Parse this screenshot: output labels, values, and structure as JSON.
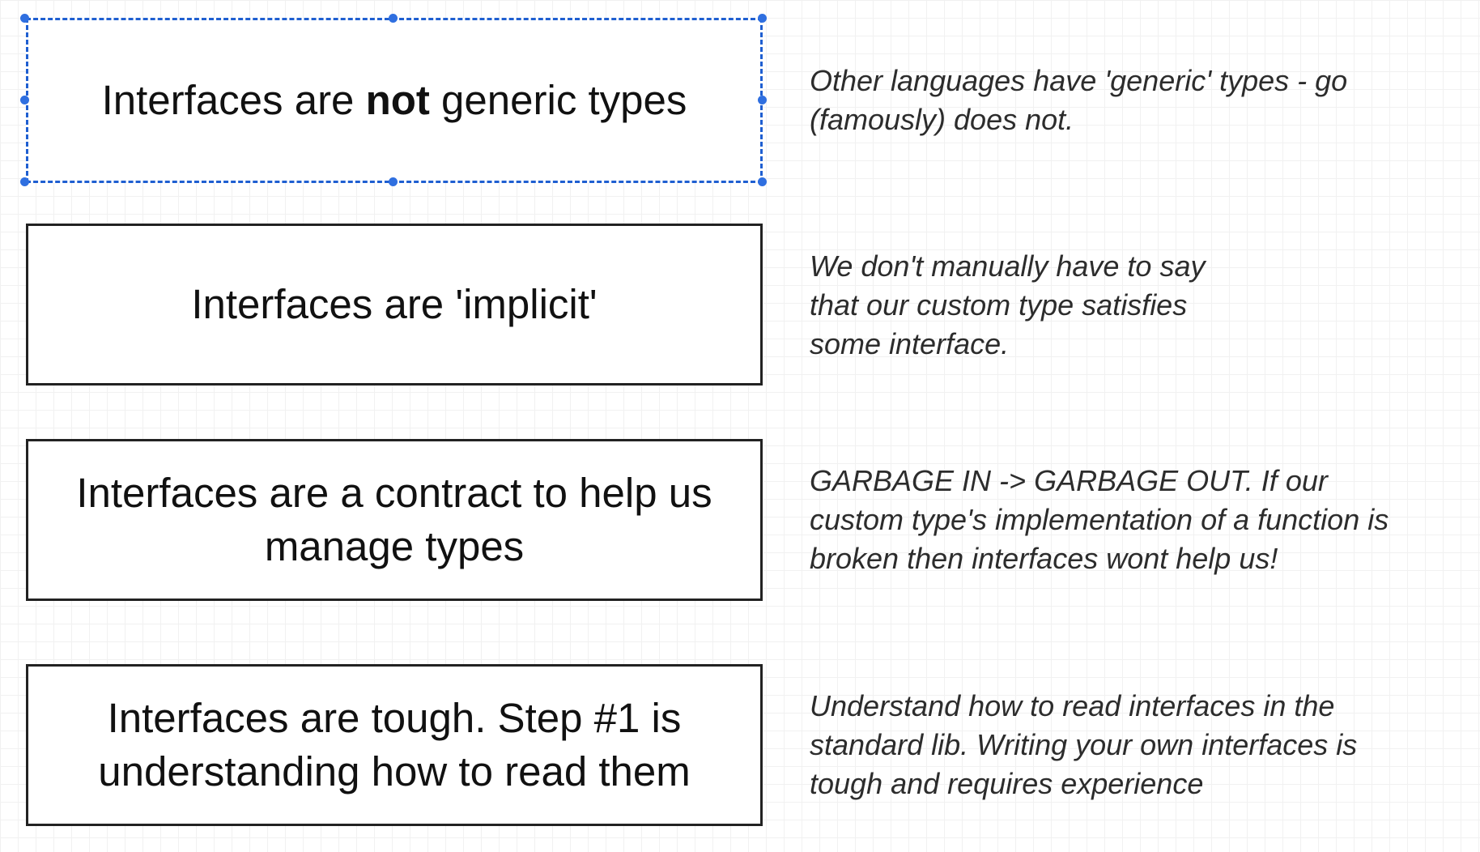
{
  "rows": [
    {
      "box": {
        "before": "Interfaces are ",
        "bold": "not",
        "after": " generic types"
      },
      "note": "Other languages have 'generic' types - go\n(famously) does not.",
      "selected": true
    },
    {
      "box": {
        "text": "Interfaces are 'implicit'"
      },
      "note": "We don't manually have to say\nthat our custom type satisfies\nsome interface."
    },
    {
      "box": {
        "text": "Interfaces are a contract to help us\nmanage types"
      },
      "note": "GARBAGE IN -> GARBAGE OUT.  If our\ncustom type's implementation of a function is\nbroken then interfaces wont help us!"
    },
    {
      "box": {
        "text": "Interfaces are tough.  Step #1 is\nunderstanding how to read them"
      },
      "note": "Understand how to read interfaces in the\nstandard lib.  Writing your own interfaces is\ntough and requires experience"
    }
  ],
  "colors": {
    "selection": "#2f6fe0",
    "border": "#222222",
    "text": "#111111",
    "note_text": "#2c2c2c"
  }
}
